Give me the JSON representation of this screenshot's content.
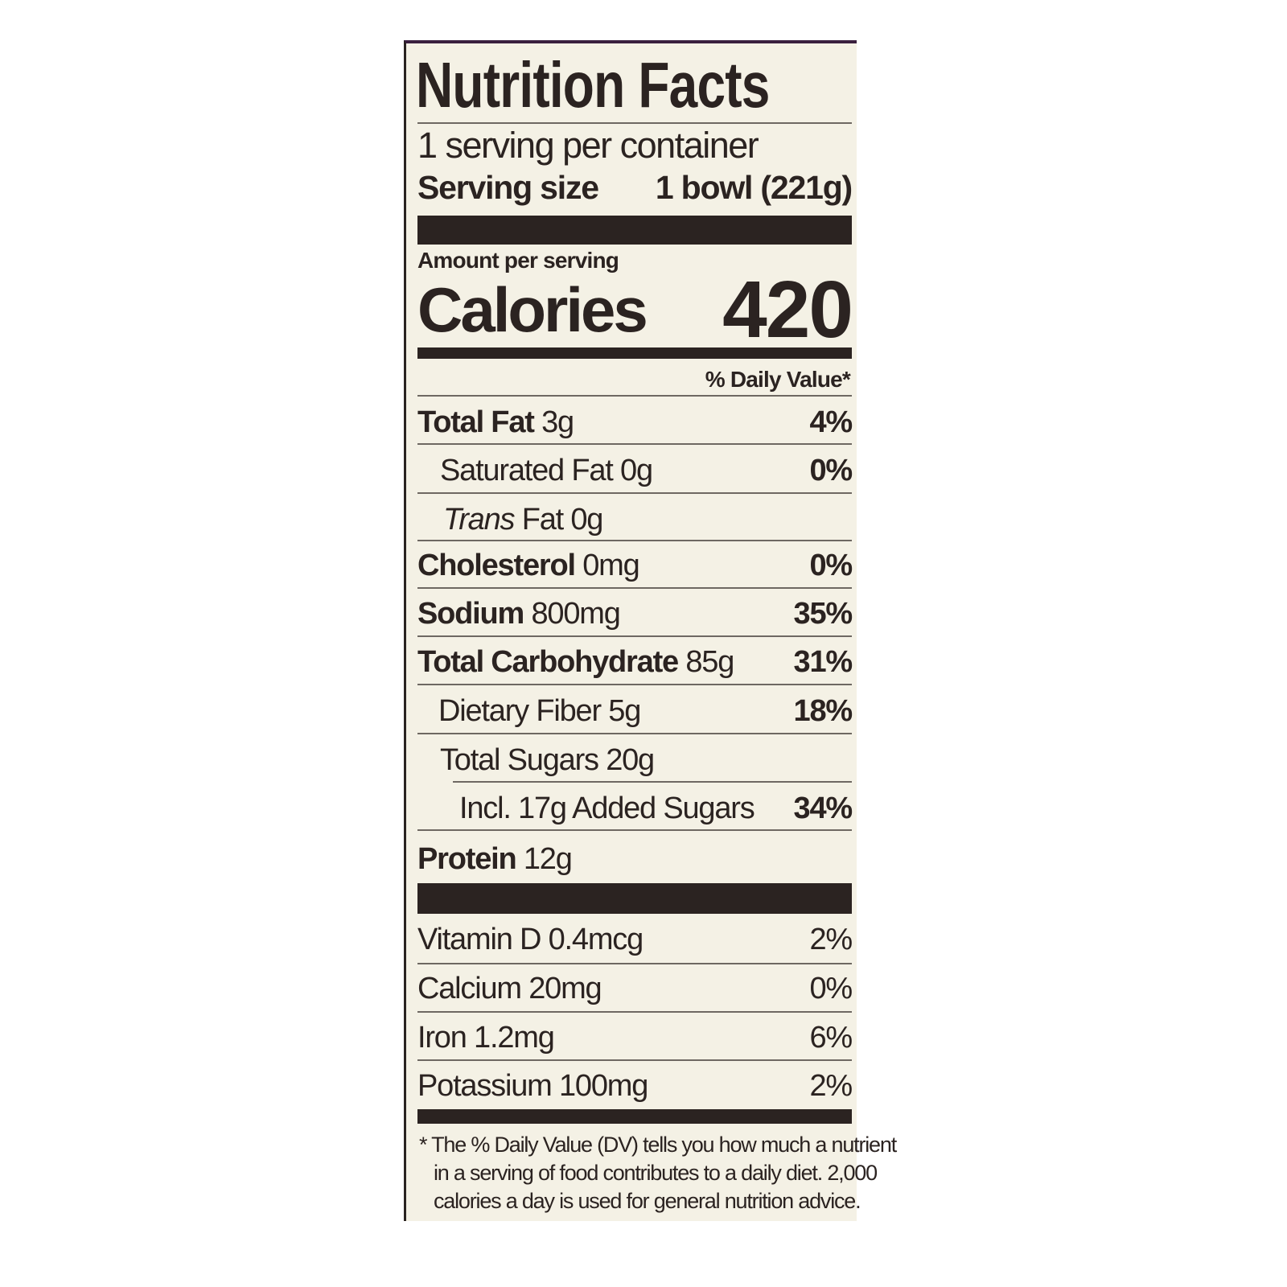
{
  "title": "Nutrition Facts",
  "servings_per_container": "1 serving per container",
  "serving_size": {
    "label": "Serving size",
    "value": "1 bowl (221g)"
  },
  "amount_per_serving": "Amount per serving",
  "calories": {
    "label": "Calories",
    "value": "420"
  },
  "daily_value_header": "% Daily Value*",
  "nutrients": [
    {
      "name": "Total Fat",
      "amount": "3g",
      "dv": "4%"
    },
    {
      "name": "Saturated Fat",
      "amount": "0g",
      "dv": "0%"
    },
    {
      "name": "Trans",
      "name_suffix": "Fat",
      "amount": "0g",
      "dv": ""
    },
    {
      "name": "Cholesterol",
      "amount": "0mg",
      "dv": "0%"
    },
    {
      "name": "Sodium",
      "amount": "800mg",
      "dv": "35%"
    },
    {
      "name": "Total Carbohydrate",
      "amount": "85g",
      "dv": "31%"
    },
    {
      "name": "Dietary Fiber",
      "amount": "5g",
      "dv": "18%"
    },
    {
      "name": "Total Sugars",
      "amount": "20g",
      "dv": ""
    },
    {
      "name": "Incl. 17g Added Sugars",
      "amount": "",
      "dv": "34%"
    },
    {
      "name": "Protein",
      "amount": "12g",
      "dv": ""
    }
  ],
  "vitamins": [
    {
      "name": "Vitamin D",
      "amount": "0.4mcg",
      "dv": "2%"
    },
    {
      "name": "Calcium",
      "amount": "20mg",
      "dv": "0%"
    },
    {
      "name": "Iron",
      "amount": "1.2mg",
      "dv": "6%"
    },
    {
      "name": "Potassium",
      "amount": "100mg",
      "dv": "2%"
    }
  ],
  "footnote": [
    "* The % Daily Value (DV) tells you how much a nutrient",
    "in a serving of food contributes to a daily diet. 2,000",
    "calories a day is used for general nutrition advice."
  ],
  "colors": {
    "background": "#f4f1e5",
    "ink": "#2b2321",
    "border_top": "#3a1f3e"
  }
}
